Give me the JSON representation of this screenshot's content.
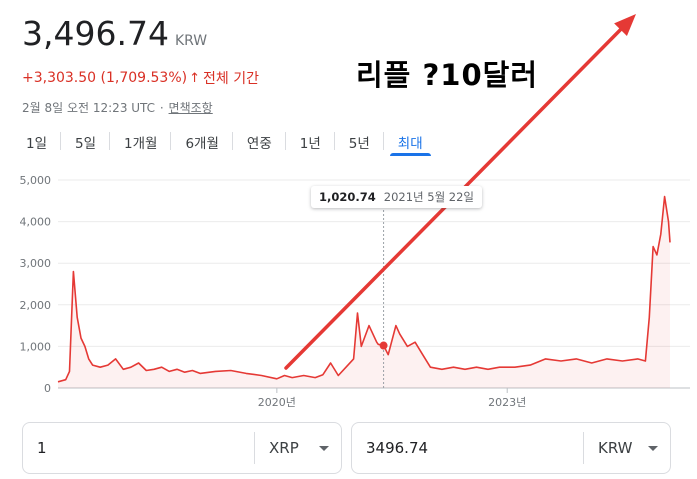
{
  "quote": {
    "price": "3,496.74",
    "currency": "KRW",
    "change": "+3,303.50 (1,709.53%)",
    "change_arrow": "↑",
    "change_period": "전체 기간",
    "timestamp": "2월 8일 오전 12:23 UTC",
    "separator": "·",
    "disclaimer": "면책조항"
  },
  "tabs": [
    {
      "label": "1일",
      "active": false
    },
    {
      "label": "5일",
      "active": false
    },
    {
      "label": "1개월",
      "active": false
    },
    {
      "label": "6개월",
      "active": false
    },
    {
      "label": "연중",
      "active": false
    },
    {
      "label": "1년",
      "active": false
    },
    {
      "label": "5년",
      "active": false
    },
    {
      "label": "최대",
      "active": true
    }
  ],
  "annotation": {
    "text": "리플 ?10달러",
    "arrow_color": "#e53935"
  },
  "tooltip": {
    "value": "1,020.74",
    "date": "2021년 5월 22일"
  },
  "colors": {
    "line": "#e53935",
    "accent": "#1a73e8",
    "negative_text": "#d93025"
  },
  "chart_data": {
    "type": "line",
    "title": "",
    "xlabel": "",
    "ylabel": "",
    "y_ticks": [
      "0",
      "1,000",
      "2,000",
      "3,000",
      "4,000",
      "5,000"
    ],
    "ylim": [
      0,
      5000
    ],
    "x_ticks": [
      {
        "label": "2020년",
        "x": 2020.0
      },
      {
        "label": "2023년",
        "x": 2023.0
      }
    ],
    "xlim": [
      2017.15,
      2025.12
    ],
    "grid": true,
    "series": [
      {
        "name": "",
        "x": [
          2017.15,
          2017.25,
          2017.3,
          2017.35,
          2017.4,
          2017.45,
          2017.5,
          2017.55,
          2017.6,
          2017.7,
          2017.8,
          2017.9,
          2018.0,
          2018.1,
          2018.2,
          2018.3,
          2018.4,
          2018.5,
          2018.6,
          2018.7,
          2018.8,
          2018.9,
          2019.0,
          2019.2,
          2019.4,
          2019.6,
          2019.8,
          2020.0,
          2020.1,
          2020.2,
          2020.35,
          2020.5,
          2020.6,
          2020.7,
          2020.8,
          2020.9,
          2021.0,
          2021.05,
          2021.1,
          2021.2,
          2021.3,
          2021.32,
          2021.39,
          2021.45,
          2021.55,
          2021.6,
          2021.7,
          2021.8,
          2021.9,
          2022.0,
          2022.15,
          2022.3,
          2022.45,
          2022.6,
          2022.75,
          2022.9,
          2023.1,
          2023.3,
          2023.5,
          2023.7,
          2023.9,
          2024.1,
          2024.3,
          2024.5,
          2024.7,
          2024.8,
          2024.85,
          2024.9,
          2024.95,
          2025.0,
          2025.05,
          2025.1,
          2025.12
        ],
        "values": [
          150,
          200,
          400,
          2800,
          1700,
          1200,
          1000,
          700,
          550,
          500,
          550,
          700,
          450,
          500,
          600,
          420,
          450,
          500,
          400,
          450,
          380,
          420,
          350,
          400,
          420,
          350,
          300,
          220,
          300,
          250,
          300,
          250,
          320,
          600,
          300,
          500,
          700,
          1800,
          1000,
          1500,
          1100,
          1050,
          1020.74,
          800,
          1500,
          1300,
          1000,
          1100,
          800,
          500,
          450,
          500,
          450,
          500,
          450,
          500,
          500,
          550,
          700,
          650,
          700,
          600,
          700,
          650,
          700,
          650,
          1700,
          3400,
          3200,
          3700,
          4600,
          4000,
          3500
        ]
      }
    ],
    "hover_point": {
      "x": 2021.39,
      "y": 1020.74
    }
  },
  "converter": {
    "from_value": "1",
    "from_unit": "XRP",
    "to_value": "3496.74",
    "to_unit": "KRW"
  }
}
